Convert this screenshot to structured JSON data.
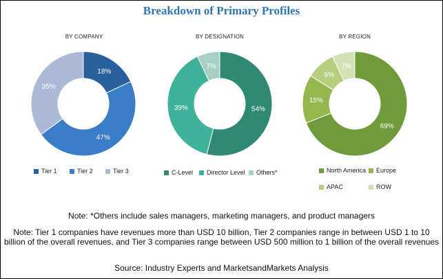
{
  "title": "Breakdown of Primary Profiles",
  "chart_data": [
    {
      "type": "pie",
      "subtitle": "BY COMPANY",
      "categories": [
        "Tier 1",
        "Tier 2",
        "Tier 3"
      ],
      "values": [
        18,
        47,
        35
      ],
      "labels": [
        "18%",
        "47%",
        "35%"
      ],
      "colors": [
        "#2a5f9e",
        "#3a7dc9",
        "#a9b9d6"
      ],
      "label_colors": [
        "#ffffff",
        "#ffffff",
        "#ffffff"
      ],
      "legend": "bottom"
    },
    {
      "type": "pie",
      "subtitle": "BY DESIGNATION",
      "categories": [
        "C-Level",
        "Director Level",
        "Others*"
      ],
      "values": [
        54,
        39,
        7
      ],
      "labels": [
        "54%",
        "39%",
        "7%"
      ],
      "colors": [
        "#2f8a73",
        "#3fb39a",
        "#a8cfc3"
      ],
      "label_colors": [
        "#ffffff",
        "#ffffff",
        "#ffffff"
      ],
      "legend": "bottom"
    },
    {
      "type": "pie",
      "subtitle": "BY REGION",
      "categories": [
        "North America",
        "Europe",
        "APAC",
        "ROW"
      ],
      "values": [
        69,
        15,
        9,
        7
      ],
      "labels": [
        "69%",
        "15%",
        "9%",
        "7%"
      ],
      "colors": [
        "#6f9b3a",
        "#94b84f",
        "#b6cf7f",
        "#d3e2b5"
      ],
      "label_colors": [
        "#ffffff",
        "#ffffff",
        "#ffffff",
        "#ffffff"
      ],
      "legend": "bottom"
    }
  ],
  "notes": {
    "others": "Note: *Others include sales managers, marketing managers, and product managers",
    "tiers": "Note: Tier 1 companies have revenues more than USD 10 billion, Tier 2 companies range in between USD 1 to 10 billion of the overall revenues, and Tier 3 companies range between USD 500 million to 1 billion of the overall revenues",
    "source": "Source: Industry Experts and MarketsandMarkets Analysis"
  }
}
